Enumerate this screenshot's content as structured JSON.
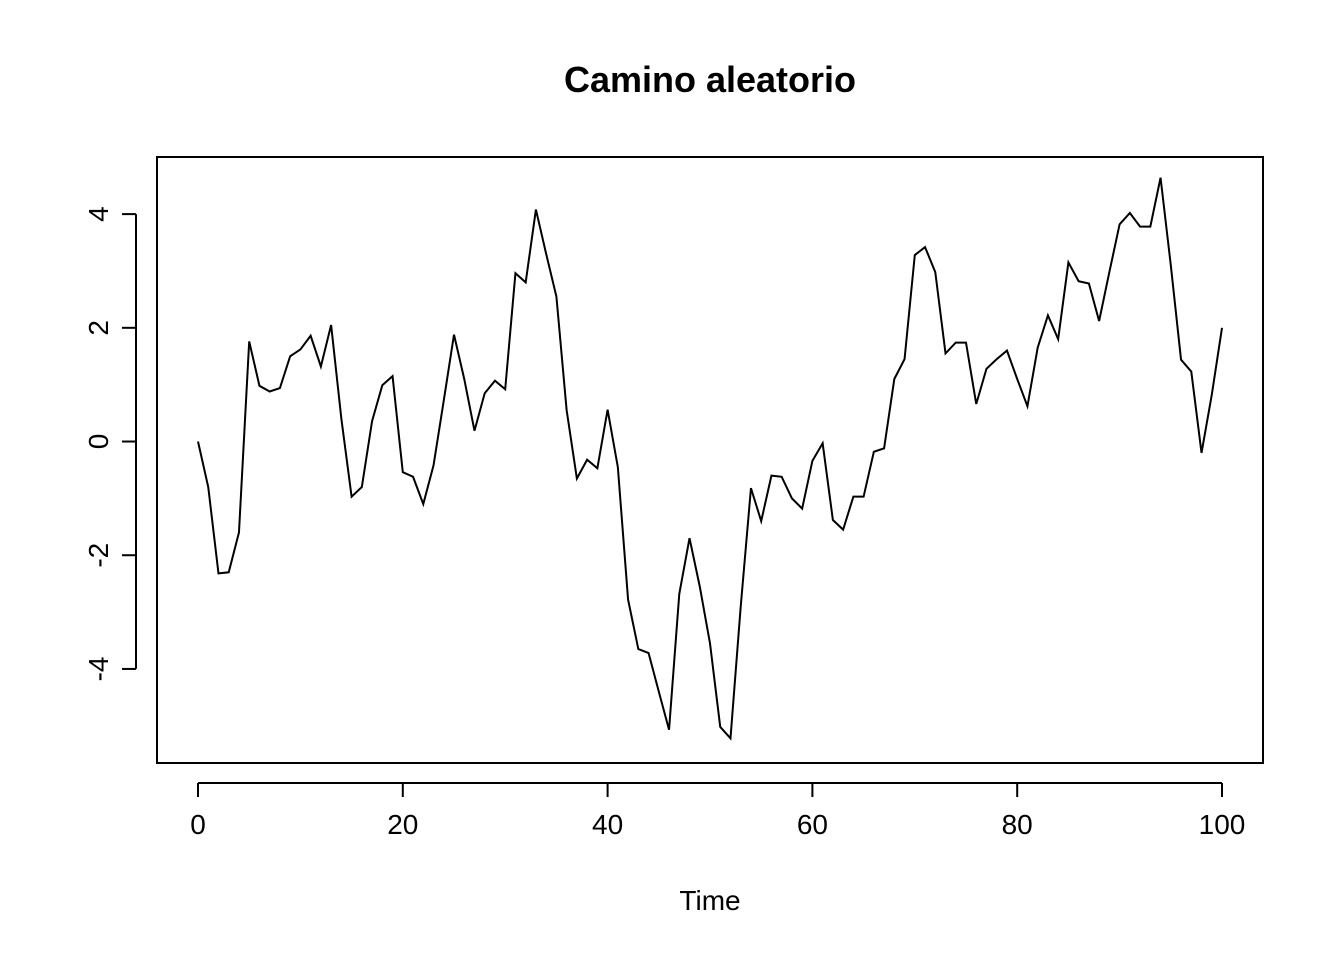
{
  "chart_data": {
    "type": "line",
    "title": "Camino aleatorio",
    "xlabel": "Time",
    "ylabel": "",
    "xlim": [
      0,
      100
    ],
    "ylim": [
      -5.25,
      4.6
    ],
    "xticks": [
      0,
      20,
      40,
      60,
      80,
      100
    ],
    "yticks": [
      -4,
      -2,
      0,
      2,
      4
    ],
    "grid": false,
    "legend": "none",
    "colors": {
      "line": "#000000",
      "axes": "#000000",
      "background": "#ffffff"
    },
    "series": [
      {
        "x": [
          0,
          1,
          2,
          3,
          4,
          5,
          6,
          7,
          8,
          9,
          10,
          11,
          12,
          13,
          14,
          15,
          16,
          17,
          18,
          19,
          20,
          21,
          22,
          23,
          24,
          25,
          26,
          27,
          28,
          29,
          30,
          31,
          32,
          33,
          34,
          35,
          36,
          37,
          38,
          39,
          40,
          41,
          42,
          43,
          44,
          45,
          46,
          47,
          48,
          49,
          50,
          51,
          52,
          53,
          54,
          55,
          56,
          57,
          58,
          59,
          60,
          61,
          62,
          63,
          64,
          65,
          66,
          67,
          68,
          69,
          70,
          71,
          72,
          73,
          74,
          75,
          76,
          77,
          78,
          79,
          80,
          81,
          82,
          83,
          84,
          85,
          86,
          87,
          88,
          89,
          90,
          91,
          92,
          93,
          94,
          95,
          96,
          97,
          98,
          99,
          100
        ],
        "values": [
          0.0,
          -0.8,
          -2.32,
          -2.3,
          -1.6,
          1.76,
          0.98,
          0.88,
          0.94,
          1.5,
          1.62,
          1.86,
          1.32,
          2.05,
          0.4,
          -0.97,
          -0.8,
          0.36,
          0.99,
          1.15,
          -0.54,
          -0.62,
          -1.1,
          -0.42,
          0.72,
          1.88,
          1.1,
          0.19,
          0.85,
          1.07,
          0.92,
          2.96,
          2.8,
          4.08,
          3.3,
          2.55,
          0.55,
          -0.65,
          -0.32,
          -0.47,
          0.56,
          -0.45,
          -2.78,
          -3.65,
          -3.72,
          -4.4,
          -5.07,
          -2.68,
          -1.7,
          -2.55,
          -3.55,
          -5.02,
          -5.22,
          -2.9,
          -0.82,
          -1.4,
          -0.6,
          -0.62,
          -1.0,
          -1.18,
          -0.34,
          -0.03,
          -1.38,
          -1.55,
          -0.97,
          -0.97,
          -0.18,
          -0.12,
          1.1,
          1.45,
          3.28,
          3.42,
          2.98,
          1.55,
          1.74,
          1.74,
          0.66,
          1.28,
          1.45,
          1.6,
          1.1,
          0.62,
          1.65,
          2.22,
          1.8,
          3.15,
          2.82,
          2.78,
          2.12,
          2.98,
          3.82,
          4.02,
          3.78,
          3.78,
          4.64,
          3.1,
          1.44,
          1.23,
          -0.2,
          0.82,
          2.0
        ]
      }
    ]
  }
}
